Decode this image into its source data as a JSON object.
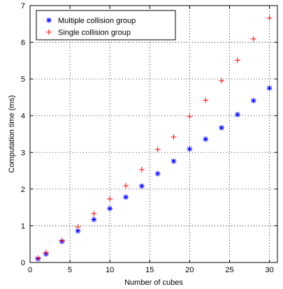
{
  "chart_data": {
    "type": "scatter",
    "title": "",
    "xlabel": "Number of cubes",
    "ylabel": "Computation time (ms)",
    "xlim": [
      0,
      31
    ],
    "ylim": [
      0,
      7
    ],
    "xticks": [
      0,
      5,
      10,
      15,
      20,
      25,
      30
    ],
    "yticks": [
      0,
      1,
      2,
      3,
      4,
      5,
      6,
      7
    ],
    "grid": true,
    "legend_position": "top-left",
    "series": [
      {
        "name": "Multiple collision group",
        "marker": "asterisk",
        "color": "#0000ff",
        "x": [
          1,
          2,
          4,
          6,
          8,
          10,
          12,
          14,
          16,
          18,
          20,
          22,
          24,
          26,
          28,
          30
        ],
        "y": [
          0.1,
          0.23,
          0.57,
          0.86,
          1.17,
          1.47,
          1.78,
          2.08,
          2.42,
          2.76,
          3.09,
          3.36,
          3.67,
          4.03,
          4.41,
          4.75
        ]
      },
      {
        "name": "Single collision group",
        "marker": "plus",
        "color": "#ff0000",
        "x": [
          1,
          2,
          4,
          6,
          8,
          10,
          12,
          14,
          16,
          18,
          20,
          22,
          24,
          26,
          28,
          30
        ],
        "y": [
          0.12,
          0.27,
          0.6,
          0.97,
          1.33,
          1.73,
          2.09,
          2.53,
          3.08,
          3.42,
          3.98,
          4.42,
          4.95,
          5.51,
          6.09,
          6.66
        ]
      }
    ]
  }
}
